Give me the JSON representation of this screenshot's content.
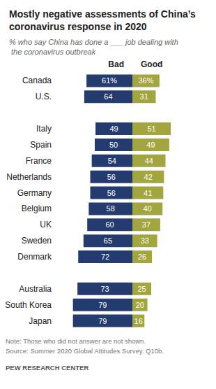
{
  "chart_data": {
    "type": "bar",
    "title": "Mostly negative assessments of China’s coronavirus response in 2020",
    "subtitle": "% who say China has done a ___ job dealing with the coronavirus outbreak",
    "orientation": "horizontal",
    "data_labels": true,
    "tick_labels": "y",
    "grid": false,
    "xlim": [
      0,
      100
    ],
    "categories": [
      "Canada",
      "U.S.",
      null,
      "Italy",
      "Spain",
      "France",
      "Netherlands",
      "Germany",
      "Belgium",
      "UK",
      "Sweden",
      "Denmark",
      null,
      "Australia",
      "South Korea",
      "Japan"
    ],
    "series": [
      {
        "name": "Bad",
        "color": "#233b6e",
        "values": [
          61,
          64,
          null,
          49,
          50,
          54,
          56,
          56,
          58,
          60,
          65,
          72,
          null,
          73,
          79,
          79
        ],
        "value_labels": [
          "61%",
          "64",
          null,
          "49",
          "50",
          "54",
          "56",
          "56",
          "58",
          "60",
          "65",
          "72",
          null,
          "73",
          "79",
          "79"
        ]
      },
      {
        "name": "Good",
        "color": "#a3a53e",
        "values": [
          36,
          31,
          null,
          51,
          49,
          44,
          42,
          41,
          40,
          37,
          33,
          26,
          null,
          25,
          20,
          16
        ],
        "value_labels": [
          "36%",
          "31",
          null,
          "51",
          "49",
          "44",
          "42",
          "41",
          "40",
          "37",
          "33",
          "26",
          null,
          "25",
          "20",
          "16"
        ]
      }
    ],
    "notes": [
      "Note: Those who did not answer are not shown.",
      "Source: Summer 2020 Global Attitudes Survey. Q10b."
    ],
    "credit": "PEW RESEARCH CENTER"
  }
}
